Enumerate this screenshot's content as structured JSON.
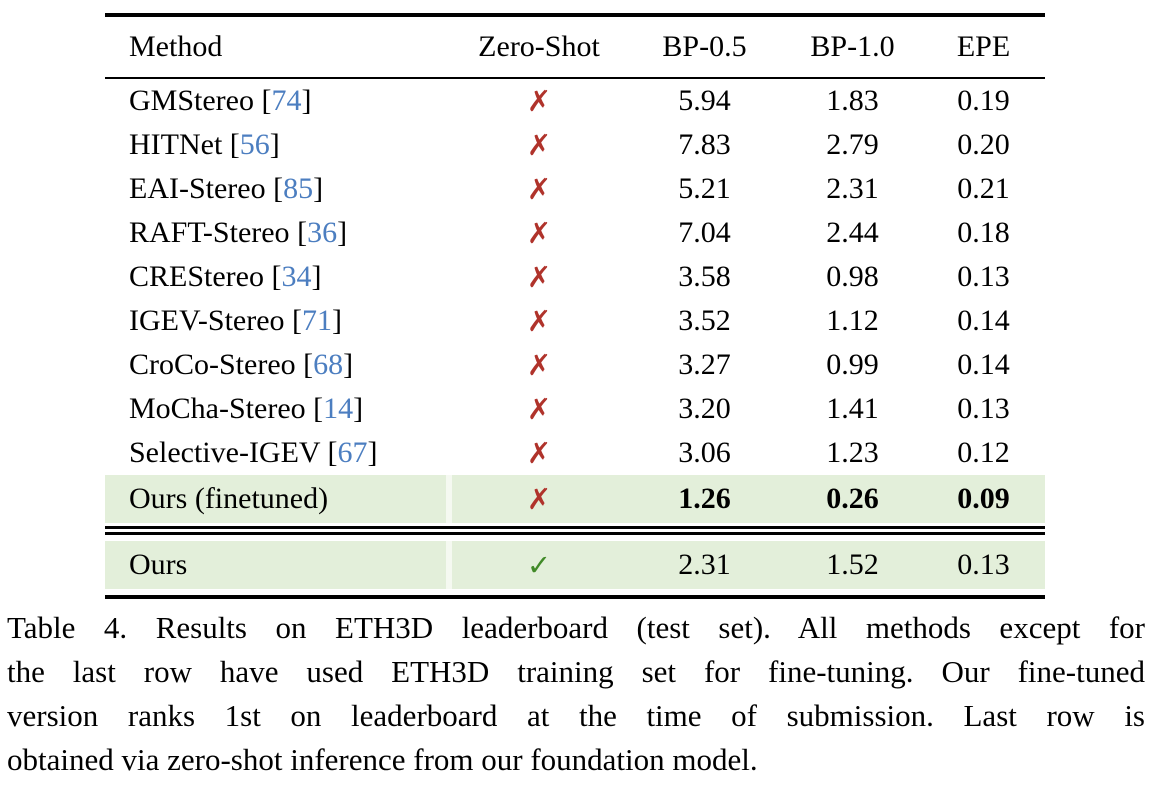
{
  "table": {
    "headers": {
      "method": "Method",
      "zero_shot": "Zero-Shot",
      "bp05": "BP-0.5",
      "bp10": "BP-1.0",
      "epe": "EPE"
    },
    "rows": [
      {
        "method": "GMStereo",
        "cite": "74",
        "mark": "✗",
        "bp05": "5.94",
        "bp10": "1.83",
        "epe": "0.19"
      },
      {
        "method": "HITNet",
        "cite": "56",
        "mark": "✗",
        "bp05": "7.83",
        "bp10": "2.79",
        "epe": "0.20"
      },
      {
        "method": "EAI-Stereo",
        "cite": "85",
        "mark": "✗",
        "bp05": "5.21",
        "bp10": "2.31",
        "epe": "0.21"
      },
      {
        "method": "RAFT-Stereo",
        "cite": "36",
        "mark": "✗",
        "bp05": "7.04",
        "bp10": "2.44",
        "epe": "0.18"
      },
      {
        "method": "CREStereo",
        "cite": "34",
        "mark": "✗",
        "bp05": "3.58",
        "bp10": "0.98",
        "epe": "0.13"
      },
      {
        "method": "IGEV-Stereo",
        "cite": "71",
        "mark": "✗",
        "bp05": "3.52",
        "bp10": "1.12",
        "epe": "0.14"
      },
      {
        "method": "CroCo-Stereo",
        "cite": "68",
        "mark": "✗",
        "bp05": "3.27",
        "bp10": "0.99",
        "epe": "0.14"
      },
      {
        "method": "MoCha-Stereo",
        "cite": "14",
        "mark": "✗",
        "bp05": "3.20",
        "bp10": "1.41",
        "epe": "0.13"
      },
      {
        "method": "Selective-IGEV",
        "cite": "67",
        "mark": "✗",
        "bp05": "3.06",
        "bp10": "1.23",
        "epe": "0.12"
      },
      {
        "method": "Ours (finetuned)",
        "cite": "",
        "mark": "✗",
        "bp05": "1.26",
        "bp10": "0.26",
        "epe": "0.09"
      },
      {
        "method": "Ours",
        "cite": "",
        "mark": "✓",
        "bp05": "2.31",
        "bp10": "1.52",
        "epe": "0.13"
      }
    ]
  },
  "caption": {
    "lines": [
      "Table 4. Results on ETH3D leaderboard (test set). All methods except for",
      "the last row have used ETH3D training set for fine-tuning. Our fine-tuned",
      "version ranks 1st on leaderboard at the time of submission. Last row is",
      "obtained via zero-shot inference from our foundation model."
    ]
  },
  "colors": {
    "highlight_green": "#e3efda",
    "highlight_gap": "#f5f9f1",
    "cross_red": "#b0332b",
    "check_green": "#418a28",
    "citation_blue": "#4c7ec0"
  }
}
